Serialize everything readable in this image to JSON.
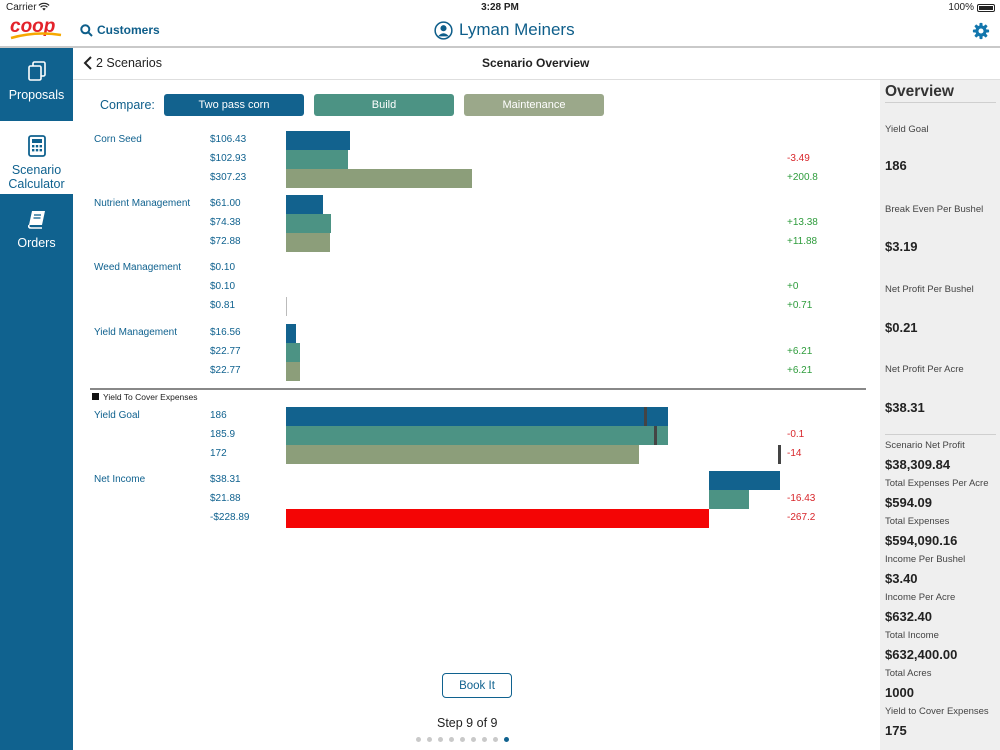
{
  "status": {
    "carrier": "Carrier",
    "time": "3:28 PM",
    "battery": "100%"
  },
  "nav": {
    "customers_label": "Customers",
    "user_name": "Lyman Meiners",
    "logo_text": "coop"
  },
  "sidebar": {
    "items": [
      {
        "label1": "Proposals",
        "label2": ""
      },
      {
        "label1": "Scenario",
        "label2": "Calculator"
      },
      {
        "label1": "Orders",
        "label2": ""
      }
    ]
  },
  "header": {
    "back_label": "2 Scenarios",
    "title": "Scenario Overview"
  },
  "compare": {
    "label": "Compare:",
    "buttons": [
      "Two pass corn",
      "Build",
      "Maintenance"
    ]
  },
  "colors": {
    "primary": "#12628e",
    "second": "#4c9384",
    "third": "#8c9e7a",
    "negative": "#f40505",
    "pos_text": "#2e9c3c",
    "neg_text": "#d8262b"
  },
  "groups": [
    {
      "label": "Corn Seed",
      "values": [
        "$106.43",
        "$102.93",
        "$307.23"
      ],
      "deltas": [
        "",
        "-3.49",
        "+200.8"
      ]
    },
    {
      "label": "Nutrient Management",
      "values": [
        "$61.00",
        "$74.38",
        "$72.88"
      ],
      "deltas": [
        "",
        "+13.38",
        "+11.88"
      ]
    },
    {
      "label": "Weed Management",
      "values": [
        "$0.10",
        "$0.10",
        "$0.81"
      ],
      "deltas": [
        "",
        "+0",
        "+0.71"
      ]
    },
    {
      "label": "Yield Management",
      "values": [
        "$16.56",
        "$22.77",
        "$22.77"
      ],
      "deltas": [
        "",
        "+6.21",
        "+6.21"
      ]
    }
  ],
  "legend": {
    "text": "Yield To Cover Expenses"
  },
  "groups2": [
    {
      "label": "Yield Goal",
      "values": [
        "186",
        "185.9",
        "172"
      ],
      "deltas": [
        "",
        "-0.1",
        "-14"
      ]
    },
    {
      "label": "Net Income",
      "values": [
        "$38.31",
        "$21.88",
        "-$228.89"
      ],
      "deltas": [
        "",
        "-16.43",
        "-267.2"
      ]
    }
  ],
  "actions": {
    "book_label": "Book It",
    "step_label": "Step 9 of 9"
  },
  "pagination": {
    "total": 9,
    "current": 9
  },
  "overview": {
    "title": "Overview",
    "top": [
      {
        "label": "Yield Goal",
        "value": "186"
      },
      {
        "label": "Break Even Per Bushel",
        "value": "$3.19"
      },
      {
        "label": "Net Profit Per Bushel",
        "value": "$0.21"
      },
      {
        "label": "Net Profit Per Acre",
        "value": "$38.31"
      }
    ],
    "bottom": [
      {
        "label": "Scenario Net Profit",
        "value": "$38,309.84"
      },
      {
        "label": "Total Expenses Per Acre",
        "value": "$594.09"
      },
      {
        "label": "Total Expenses",
        "value": "$594,090.16"
      },
      {
        "label": "Income Per Bushel",
        "value": "$3.40"
      },
      {
        "label": "Income Per Acre",
        "value": "$632.40"
      },
      {
        "label": "Total Income",
        "value": "$632,400.00"
      },
      {
        "label": "Total Acres",
        "value": "1000"
      },
      {
        "label": "Yield to Cover Expenses",
        "value": "175"
      }
    ]
  }
}
